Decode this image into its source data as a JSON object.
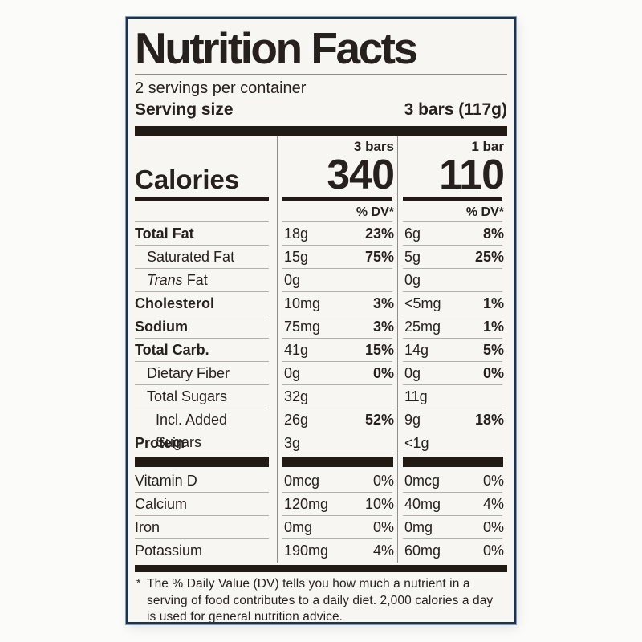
{
  "label": {
    "title": "Nutrition Facts",
    "servings_per_container": "2 servings per container",
    "serving_size": {
      "label": "Serving size",
      "value": "3 bars (117g)"
    },
    "calories": {
      "label": "Calories",
      "dv_header": "% DV*",
      "columns": [
        {
          "header": "3 bars",
          "value": "340"
        },
        {
          "header": "1 bar",
          "value": "110"
        }
      ]
    },
    "nutrient_rows": [
      {
        "name": "Total Fat",
        "bold": true,
        "indent": 0,
        "italic_prefix": "",
        "col1": {
          "amount": "18g",
          "dv": "23%"
        },
        "col2": {
          "amount": "6g",
          "dv": "8%"
        }
      },
      {
        "name": "Saturated Fat",
        "bold": false,
        "indent": 1,
        "italic_prefix": "",
        "col1": {
          "amount": "15g",
          "dv": "75%"
        },
        "col2": {
          "amount": "5g",
          "dv": "25%"
        }
      },
      {
        "name": "Fat",
        "bold": false,
        "indent": 1,
        "italic_prefix": "Trans ",
        "col1": {
          "amount": "0g",
          "dv": ""
        },
        "col2": {
          "amount": "0g",
          "dv": ""
        }
      },
      {
        "name": "Cholesterol",
        "bold": true,
        "indent": 0,
        "italic_prefix": "",
        "col1": {
          "amount": "10mg",
          "dv": "3%"
        },
        "col2": {
          "amount": "<5mg",
          "dv": "1%"
        }
      },
      {
        "name": "Sodium",
        "bold": true,
        "indent": 0,
        "italic_prefix": "",
        "col1": {
          "amount": "75mg",
          "dv": "3%"
        },
        "col2": {
          "amount": "25mg",
          "dv": "1%"
        }
      },
      {
        "name": "Total Carb.",
        "bold": true,
        "indent": 0,
        "italic_prefix": "",
        "col1": {
          "amount": "41g",
          "dv": "15%"
        },
        "col2": {
          "amount": "14g",
          "dv": "5%"
        }
      },
      {
        "name": "Dietary Fiber",
        "bold": false,
        "indent": 1,
        "italic_prefix": "",
        "col1": {
          "amount": "0g",
          "dv": "0%"
        },
        "col2": {
          "amount": "0g",
          "dv": "0%"
        }
      },
      {
        "name": "Total Sugars",
        "bold": false,
        "indent": 1,
        "italic_prefix": "",
        "col1": {
          "amount": "32g",
          "dv": ""
        },
        "col2": {
          "amount": "11g",
          "dv": ""
        }
      },
      {
        "name": "Incl. Added Sugars",
        "bold": false,
        "indent": 2,
        "italic_prefix": "",
        "col1": {
          "amount": "26g",
          "dv": "52%"
        },
        "col2": {
          "amount": "9g",
          "dv": "18%"
        }
      },
      {
        "name": "Protein",
        "bold": true,
        "indent": 0,
        "italic_prefix": "",
        "col1": {
          "amount": "3g",
          "dv": ""
        },
        "col2": {
          "amount": "<1g",
          "dv": ""
        }
      }
    ],
    "micronutrient_rows": [
      {
        "name": "Vitamin D",
        "col1": {
          "amount": "0mcg",
          "dv": "0%"
        },
        "col2": {
          "amount": "0mcg",
          "dv": "0%"
        }
      },
      {
        "name": "Calcium",
        "col1": {
          "amount": "120mg",
          "dv": "10%"
        },
        "col2": {
          "amount": "40mg",
          "dv": "4%"
        }
      },
      {
        "name": "Iron",
        "col1": {
          "amount": "0mg",
          "dv": "0%"
        },
        "col2": {
          "amount": "0mg",
          "dv": "0%"
        }
      },
      {
        "name": "Potassium",
        "col1": {
          "amount": "190mg",
          "dv": "4%"
        },
        "col2": {
          "amount": "60mg",
          "dv": "0%"
        }
      }
    ],
    "footnote_marker": "*",
    "footnote": "The % Daily Value (DV) tells you how much a nutrient in a serving of food contributes to a daily diet. 2,000 calories a day is used for general nutrition advice."
  },
  "colors": {
    "ink": "#27211d",
    "panel_background": "#f8f6f3",
    "border_navy": "#1f3345",
    "border_blue_fringe": "#346ea8",
    "hairline": "#b4b1ad",
    "divider": "#918e8a",
    "bar": "#211a15"
  }
}
